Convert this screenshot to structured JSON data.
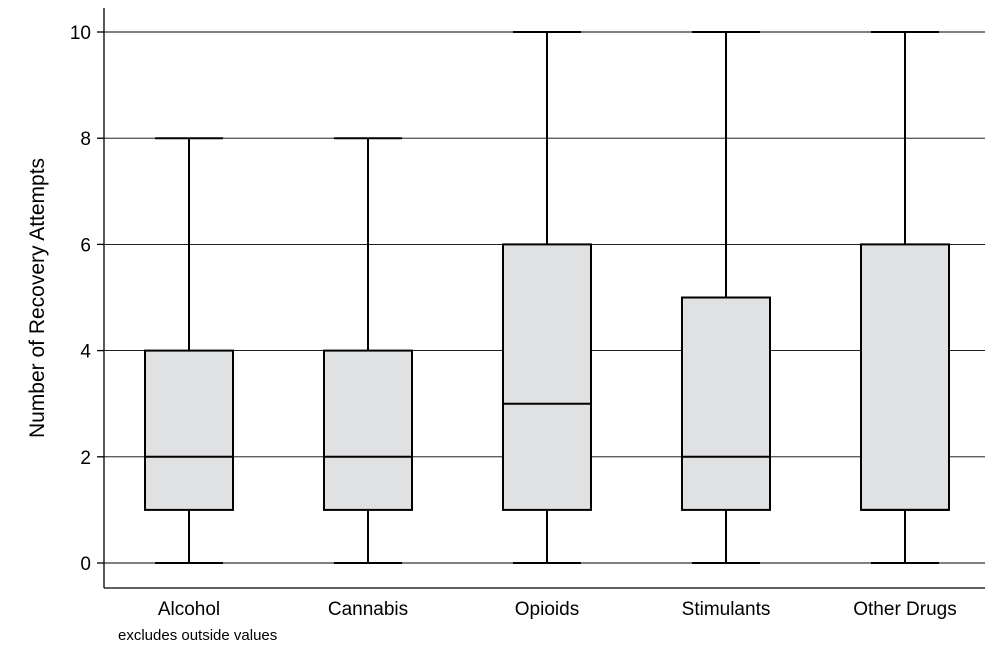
{
  "chart_data": {
    "type": "box",
    "title": "",
    "xlabel": "",
    "ylabel": "Number of Recovery Attempts",
    "note": "excludes outside values",
    "ylim": [
      0,
      10
    ],
    "yticks": [
      0,
      2,
      4,
      6,
      8,
      10
    ],
    "grid": true,
    "box_color": "#e0e1e3",
    "categories": [
      "Alcohol",
      "Cannabis",
      "Opioids",
      "Stimulants",
      "Other Drugs"
    ],
    "boxes": [
      {
        "category": "Alcohol",
        "whisker_low": 0,
        "q1": 1,
        "median": 2,
        "q3": 4,
        "whisker_high": 8
      },
      {
        "category": "Cannabis",
        "whisker_low": 0,
        "q1": 1,
        "median": 2,
        "q3": 4,
        "whisker_high": 8
      },
      {
        "category": "Opioids",
        "whisker_low": 0,
        "q1": 1,
        "median": 3,
        "q3": 6,
        "whisker_high": 10
      },
      {
        "category": "Stimulants",
        "whisker_low": 0,
        "q1": 1,
        "median": 2,
        "q3": 5,
        "whisker_high": 10
      },
      {
        "category": "Other Drugs",
        "whisker_low": 0,
        "q1": 1,
        "median": 1,
        "q3": 6,
        "whisker_high": 10
      }
    ]
  }
}
